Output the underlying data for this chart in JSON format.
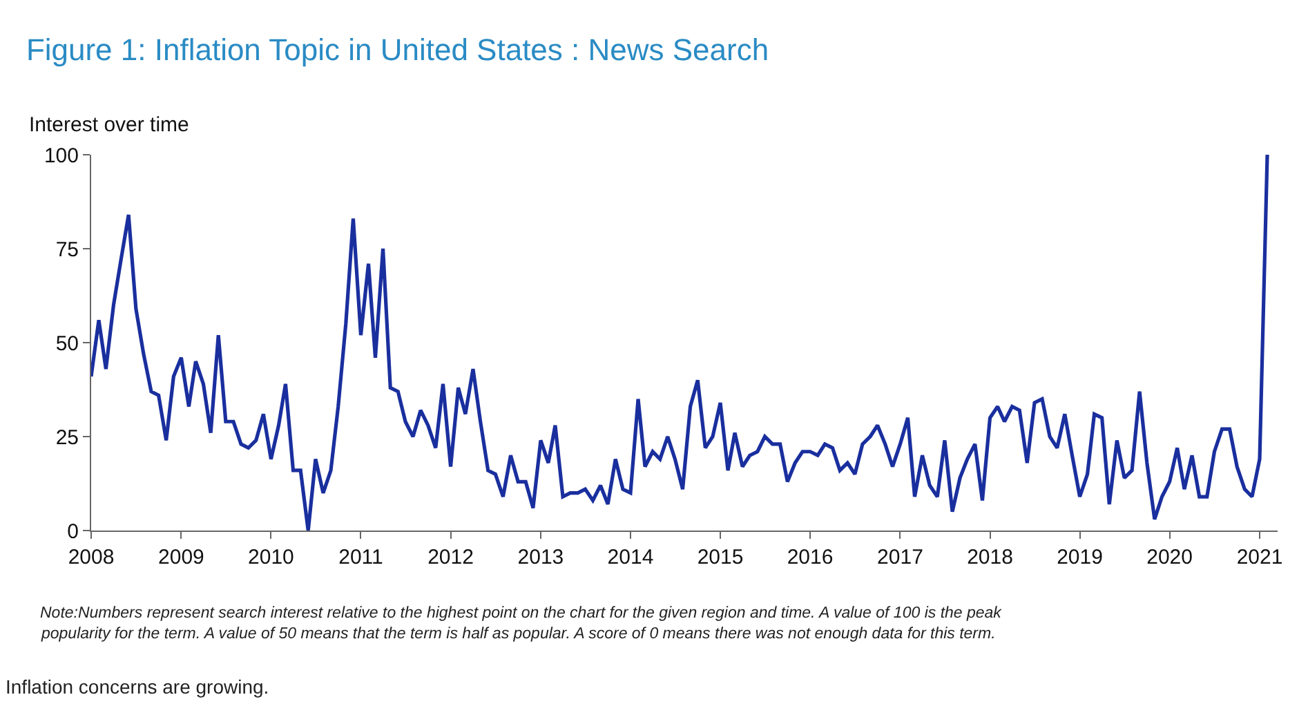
{
  "chart_data": {
    "type": "line",
    "title": "Figure 1: Inflation Topic in United States : News Search",
    "ylabel": "Interest over time",
    "x": [
      "2008-01",
      "2008-02",
      "2008-03",
      "2008-04",
      "2008-05",
      "2008-06",
      "2008-07",
      "2008-08",
      "2008-09",
      "2008-10",
      "2008-11",
      "2008-12",
      "2009-01",
      "2009-02",
      "2009-03",
      "2009-04",
      "2009-05",
      "2009-06",
      "2009-07",
      "2009-08",
      "2009-09",
      "2009-10",
      "2009-11",
      "2009-12",
      "2010-01",
      "2010-02",
      "2010-03",
      "2010-04",
      "2010-05",
      "2010-06",
      "2010-07",
      "2010-08",
      "2010-09",
      "2010-10",
      "2010-11",
      "2010-12",
      "2011-01",
      "2011-02",
      "2011-03",
      "2011-04",
      "2011-05",
      "2011-06",
      "2011-07",
      "2011-08",
      "2011-09",
      "2011-10",
      "2011-11",
      "2011-12",
      "2012-01",
      "2012-02",
      "2012-03",
      "2012-04",
      "2012-05",
      "2012-06",
      "2012-07",
      "2012-08",
      "2012-09",
      "2012-10",
      "2012-11",
      "2012-12",
      "2013-01",
      "2013-02",
      "2013-03",
      "2013-04",
      "2013-05",
      "2013-06",
      "2013-07",
      "2013-08",
      "2013-09",
      "2013-10",
      "2013-11",
      "2013-12",
      "2014-01",
      "2014-02",
      "2014-03",
      "2014-04",
      "2014-05",
      "2014-06",
      "2014-07",
      "2014-08",
      "2014-09",
      "2014-10",
      "2014-11",
      "2014-12",
      "2015-01",
      "2015-02",
      "2015-03",
      "2015-04",
      "2015-05",
      "2015-06",
      "2015-07",
      "2015-08",
      "2015-09",
      "2015-10",
      "2015-11",
      "2015-12",
      "2016-01",
      "2016-02",
      "2016-03",
      "2016-04",
      "2016-05",
      "2016-06",
      "2016-07",
      "2016-08",
      "2016-09",
      "2016-10",
      "2016-11",
      "2016-12",
      "2017-01",
      "2017-02",
      "2017-03",
      "2017-04",
      "2017-05",
      "2017-06",
      "2017-07",
      "2017-08",
      "2017-09",
      "2017-10",
      "2017-11",
      "2017-12",
      "2018-01",
      "2018-02",
      "2018-03",
      "2018-04",
      "2018-05",
      "2018-06",
      "2018-07",
      "2018-08",
      "2018-09",
      "2018-10",
      "2018-11",
      "2018-12",
      "2019-01",
      "2019-02",
      "2019-03",
      "2019-04",
      "2019-05",
      "2019-06",
      "2019-07",
      "2019-08",
      "2019-09",
      "2019-10",
      "2019-11",
      "2019-12",
      "2020-01",
      "2020-02",
      "2020-03",
      "2020-04",
      "2020-05",
      "2020-06",
      "2020-07",
      "2020-08",
      "2020-09",
      "2020-10",
      "2020-11",
      "2020-12",
      "2021-01",
      "2021-02"
    ],
    "series": [
      {
        "color": "#1a2f9e",
        "values": [
          41,
          56,
          43,
          60,
          72,
          84,
          59,
          47,
          37,
          36,
          24,
          41,
          46,
          33,
          45,
          39,
          26,
          52,
          29,
          29,
          23,
          22,
          24,
          31,
          19,
          28,
          39,
          16,
          16,
          0,
          19,
          10,
          16,
          33,
          55,
          83,
          52,
          71,
          46,
          75,
          38,
          37,
          29,
          25,
          32,
          28,
          22,
          39,
          17,
          38,
          31,
          43,
          29,
          16,
          15,
          9,
          20,
          13,
          13,
          6,
          24,
          18,
          28,
          9,
          10,
          10,
          11,
          8,
          12,
          7,
          19,
          11,
          10,
          35,
          17,
          21,
          19,
          25,
          19,
          11,
          33,
          40,
          22,
          25,
          34,
          16,
          26,
          17,
          20,
          21,
          25,
          23,
          23,
          13,
          18,
          21,
          21,
          20,
          23,
          22,
          16,
          18,
          15,
          23,
          25,
          28,
          23,
          17,
          23,
          30,
          9,
          20,
          12,
          9,
          24,
          5,
          14,
          19,
          23,
          8,
          30,
          33,
          29,
          33,
          32,
          18,
          34,
          35,
          25,
          22,
          31,
          20,
          9,
          15,
          31,
          30,
          7,
          24,
          14,
          16,
          37,
          18,
          3,
          9,
          13,
          22,
          11,
          20,
          9,
          9,
          21,
          27,
          27,
          17,
          11,
          9,
          19,
          100
        ]
      }
    ],
    "xlim": [
      "2008-01-01",
      "2021-03-15"
    ],
    "xticks": [
      "2008",
      "2009",
      "2010",
      "2011",
      "2012",
      "2013",
      "2014",
      "2015",
      "2016",
      "2017",
      "2018",
      "2019",
      "2020",
      "2021"
    ],
    "ylim": [
      0,
      100
    ],
    "yticks": [
      0,
      25,
      50,
      75,
      100
    ],
    "marker": "none",
    "line_style": "solid",
    "annotations": [
      "Note:Numbers represent search interest relative to the highest point on the chart for the given region and time. A value of 100 is the peak",
      "popularity for the term. A value of 50 means that the term is half as popular. A score of 0 means there was not enough data for this term.",
      "Inflation concerns are growing."
    ]
  }
}
